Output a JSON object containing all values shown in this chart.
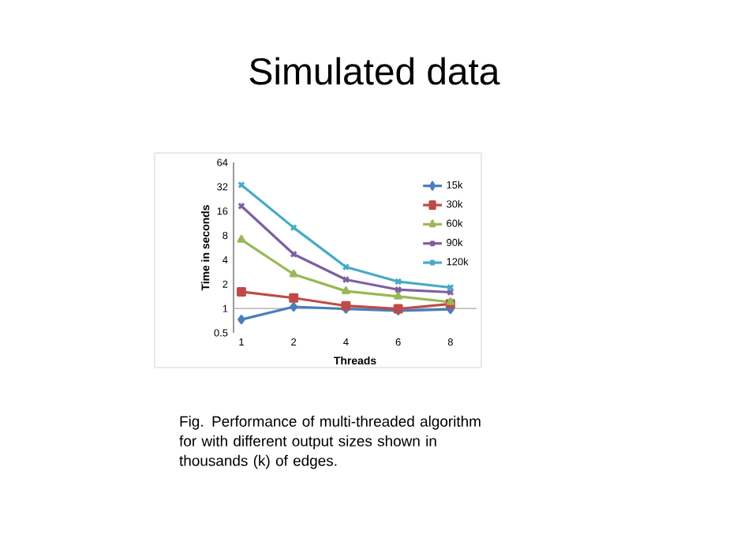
{
  "chart_data": {
    "type": "line",
    "title": "Simulated data",
    "xlabel": "Threads",
    "ylabel": "Time in seconds",
    "categories": [
      "1",
      "2",
      "4",
      "6",
      "8"
    ],
    "series": [
      {
        "name": "15k",
        "color": "#4a7ebb",
        "marker": "diamond",
        "values": [
          0.73,
          1.05,
          0.99,
          0.94,
          0.98
        ]
      },
      {
        "name": "30k",
        "color": "#be4b48",
        "marker": "square",
        "values": [
          1.61,
          1.35,
          1.08,
          0.99,
          1.14
        ]
      },
      {
        "name": "60k",
        "color": "#98b954",
        "marker": "triangle",
        "values": [
          7.1,
          2.65,
          1.64,
          1.41,
          1.2
        ]
      },
      {
        "name": "90k",
        "color": "#7d60a0",
        "marker": "cross",
        "values": [
          18.5,
          4.7,
          2.28,
          1.71,
          1.59
        ]
      },
      {
        "name": "120k",
        "color": "#46aac5",
        "marker": "cross",
        "values": [
          33.8,
          10,
          3.26,
          2.15,
          1.82
        ]
      }
    ],
    "log": "y",
    "ylim": [
      0.5,
      64
    ],
    "yticks": [
      0.5,
      1,
      2,
      4,
      8,
      16,
      32,
      64
    ],
    "ref_lines": [
      {
        "axis": "y",
        "value": 1,
        "color": "#a6a6a6"
      }
    ],
    "legend": "top right",
    "grid": false,
    "annotations": [
      "Fig. Performance of multi-threaded algorithm for with different output sizes shown in thousands (k) of edges."
    ]
  }
}
